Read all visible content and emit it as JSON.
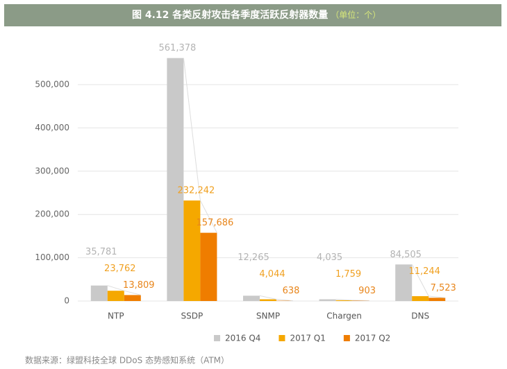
{
  "chart_data": {
    "type": "bar",
    "title": "图 4.12 各类反射攻击各季度活跃反射器数量",
    "unit": "（单位：个）",
    "categories": [
      "NTP",
      "SSDP",
      "SNMP",
      "Chargen",
      "DNS"
    ],
    "series": [
      {
        "name": "2016 Q4",
        "color": "#c9c9c9",
        "label_color": "#b3b3b3",
        "values": [
          35781,
          561378,
          12265,
          4035,
          84505
        ],
        "value_labels": [
          "35,781",
          "561,378",
          "12,265",
          "4,035",
          "84,505"
        ]
      },
      {
        "name": "2017 Q1",
        "color": "#f5a800",
        "label_color": "#f0a020",
        "values": [
          23762,
          232242,
          4044,
          1759,
          11244
        ],
        "value_labels": [
          "23,762",
          "232,242",
          "4,044",
          "1,759",
          "11,244"
        ]
      },
      {
        "name": "2017 Q2",
        "color": "#ef7d00",
        "label_color": "#e8851a",
        "values": [
          13809,
          157686,
          638,
          903,
          7523
        ],
        "value_labels": [
          "13,809",
          "157,686",
          "638",
          "903",
          "7,523"
        ]
      }
    ],
    "ylim": [
      0,
      600000
    ],
    "yticks": [
      0,
      {
        "value": 100000,
        "label": "100,000"
      },
      {
        "value": 200000,
        "label": "200,000"
      },
      {
        "value": 300000,
        "label": "300,000"
      },
      {
        "value": 400000,
        "label": "400,000"
      },
      {
        "value": 500000,
        "label": "500,000"
      }
    ],
    "grid": true,
    "source": "数据来源：绿盟科技全球 DDoS 态势感知系统（ATM）"
  }
}
